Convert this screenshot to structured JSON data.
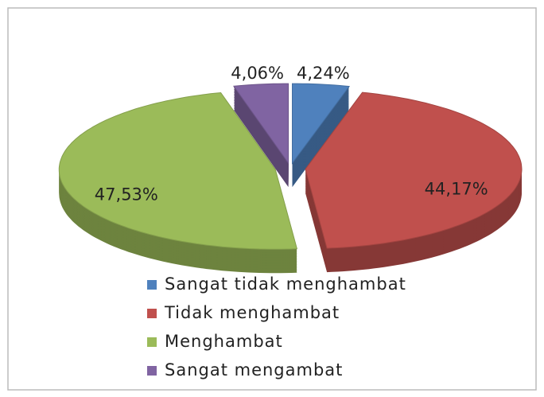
{
  "chart_data": {
    "type": "pie",
    "categories": [
      "Sangat tidak menghambat",
      "Tidak menghambat",
      "Menghambat",
      "Sangat mengambat"
    ],
    "values": [
      4.24,
      44.17,
      47.53,
      4.06
    ],
    "value_labels": [
      "4,24%",
      "44,17%",
      "47,53%",
      "4,06%"
    ],
    "colors": [
      "#4f81bd",
      "#c0504d",
      "#9bbb59",
      "#8064a2"
    ],
    "legend": "bottom"
  }
}
